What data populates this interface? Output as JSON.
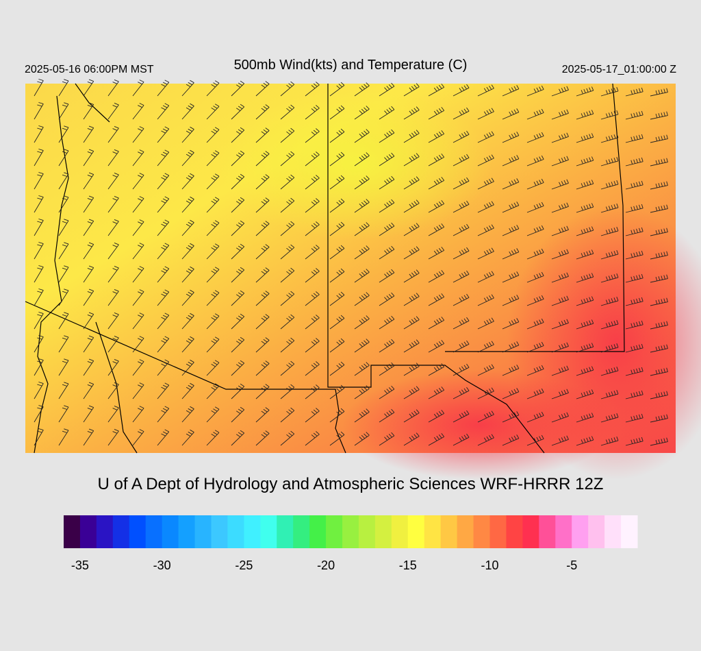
{
  "header": {
    "valid_local": "2025-05-16 06:00PM MST",
    "title": "500mb Wind(kts) and Temperature (C)",
    "valid_utc": "2025-05-17_01:00:00 Z"
  },
  "footer": {
    "credit": "U of A Dept of Hydrology and Atmospheric Sciences WRF-HRRR 12Z"
  },
  "colorbar": {
    "clim": [
      -36,
      -1
    ],
    "ticks": [
      -35,
      -30,
      -25,
      -20,
      -15,
      -10,
      -5
    ],
    "colors": [
      "#3a0048",
      "#3a0096",
      "#2a14c4",
      "#1430e6",
      "#0050ff",
      "#0870ff",
      "#0a88ff",
      "#14a0ff",
      "#28b4ff",
      "#3cc8ff",
      "#3cdcff",
      "#40f0ff",
      "#40ffee",
      "#30f0b4",
      "#34ee80",
      "#44f048",
      "#70f040",
      "#98f040",
      "#b8f040",
      "#d4f040",
      "#f0f040",
      "#ffff40",
      "#ffe444",
      "#ffc844",
      "#ffa844",
      "#ff8844",
      "#ff6844",
      "#ff4444",
      "#ff3050",
      "#ff5098",
      "#ff70c8",
      "#ffa0f0",
      "#ffc0ee",
      "#ffe0fa",
      "#fff2ff"
    ]
  }
}
